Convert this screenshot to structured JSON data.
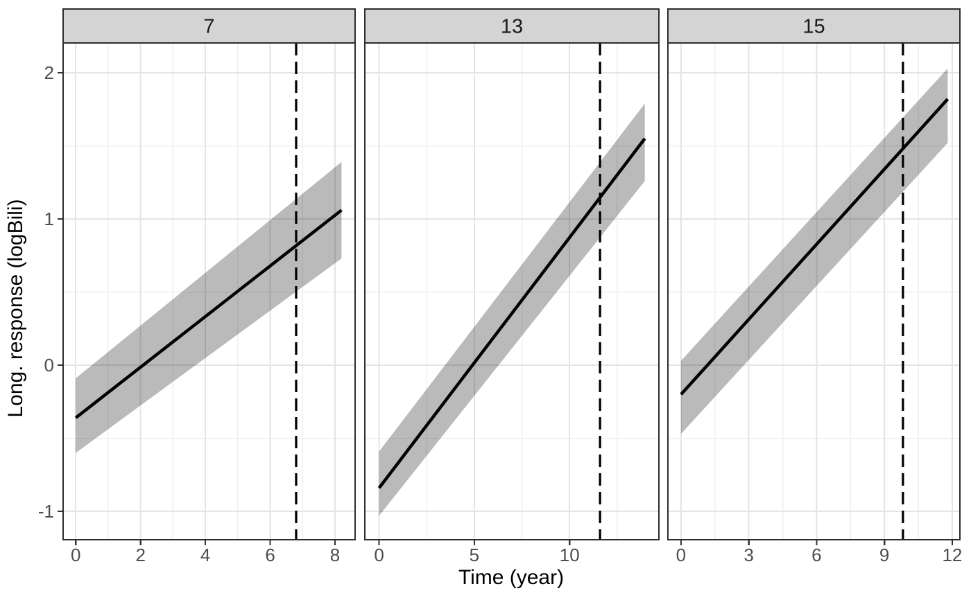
{
  "chart_data": {
    "type": "line",
    "title": "",
    "xlabel": "Time (year)",
    "ylabel": "Long. response (logBili)",
    "facet_variable_values": [
      "7",
      "13",
      "15"
    ],
    "legend": "none",
    "grid": "on",
    "y_axis": {
      "ticks": [
        -1,
        0,
        1,
        2
      ],
      "minor_ticks": [
        -0.5,
        0.5,
        1.5
      ],
      "domain": [
        -1.194,
        2.204
      ]
    },
    "panels": [
      {
        "label": "7",
        "x_domain": [
          -0.39,
          8.62
        ],
        "x_ticks": [
          0,
          2,
          4,
          6,
          8
        ],
        "x_minor": [
          1,
          3,
          5,
          7
        ],
        "vline_x": 6.8,
        "fit_line": {
          "x": [
            0,
            8.2
          ],
          "y": [
            -0.36,
            1.06
          ]
        },
        "ribbon": {
          "x": [
            0,
            8.2
          ],
          "upper": [
            -0.09,
            1.39
          ],
          "lower": [
            -0.6,
            0.73
          ]
        }
      },
      {
        "label": "13",
        "x_domain": [
          -0.75,
          14.69
        ],
        "x_ticks": [
          0,
          5,
          10
        ],
        "x_minor": [
          2.5,
          7.5,
          12.5
        ],
        "vline_x": 11.6,
        "fit_line": {
          "x": [
            0,
            13.95
          ],
          "y": [
            -0.84,
            1.55
          ]
        },
        "ribbon": {
          "x": [
            0,
            13.95
          ],
          "upper": [
            -0.59,
            1.79
          ],
          "lower": [
            -1.03,
            1.26
          ]
        }
      },
      {
        "label": "15",
        "x_domain": [
          -0.58,
          12.34
        ],
        "x_ticks": [
          0,
          3,
          6,
          9,
          12
        ],
        "x_minor": [
          1.5,
          4.5,
          7.5,
          10.5
        ],
        "vline_x": 9.82,
        "fit_line": {
          "x": [
            0,
            11.8
          ],
          "y": [
            -0.2,
            1.82
          ]
        },
        "ribbon": {
          "x": [
            0,
            11.8
          ],
          "upper": [
            0.03,
            2.03
          ],
          "lower": [
            -0.47,
            1.52
          ]
        }
      }
    ],
    "colors": {
      "background": "#ffffff",
      "strip_background": "#d4d4d4",
      "strip_text": "#1a1a1a",
      "panel_border": "#2c2c2c",
      "grid_major": "#e4e4e4",
      "grid_minor": "#efefef",
      "ribbon_fill": "rgba(0,0,0,0.27)",
      "fit_line": "#000000",
      "vline": "#000000",
      "tick_mark": "#333333",
      "tick_text": "#4d4d4d",
      "axis_title_text": "#000000"
    }
  }
}
